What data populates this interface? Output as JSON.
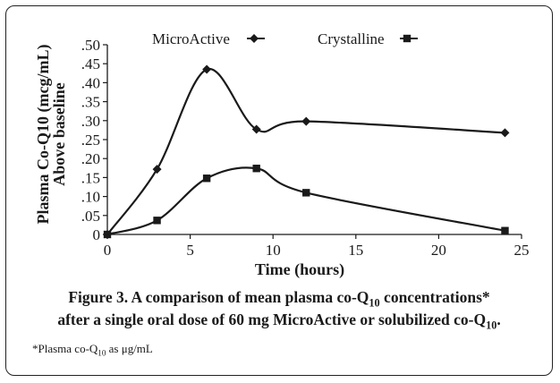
{
  "chart_data": {
    "type": "line",
    "xlabel": "Time (hours)",
    "ylabel": [
      "Plasma Co-Q10 (mcg/mL)",
      "Above baseline"
    ],
    "xlim": [
      0,
      25
    ],
    "ylim": [
      0,
      0.5
    ],
    "x_ticks": [
      "0",
      "5",
      "10",
      "15",
      "20",
      "25"
    ],
    "y_ticks": [
      "0",
      ".05",
      ".10",
      ".15",
      ".20",
      ".25",
      ".30",
      ".35",
      ".40",
      ".45",
      ".50"
    ],
    "legend_position": "top",
    "series": [
      {
        "name": "MicroActive",
        "marker": "diamond",
        "x": [
          0,
          3,
          6,
          9,
          12,
          24
        ],
        "y": [
          0,
          0.172,
          0.435,
          0.277,
          0.298,
          0.268
        ]
      },
      {
        "name": "Crystalline",
        "marker": "square",
        "x": [
          0,
          3,
          6,
          9,
          12,
          24
        ],
        "y": [
          0,
          0.037,
          0.148,
          0.174,
          0.11,
          0.01
        ]
      }
    ]
  },
  "caption": {
    "line1_bold": "Figure 3.",
    "line1_rest_pre": " A comparison of mean plasma co-Q",
    "line1_sub": "10",
    "line1_rest_post": " concentrations*",
    "line2_pre": "after a single oral dose of 60 mg MicroActive or solubilized co-Q",
    "line2_sub": "10",
    "line2_post": ".",
    "footnote_pre": "*Plasma co-Q",
    "footnote_sub": "10",
    "footnote_post": " as μg/mL"
  },
  "colors": {
    "line": "#1a1a1a",
    "background": "#ffffff"
  }
}
